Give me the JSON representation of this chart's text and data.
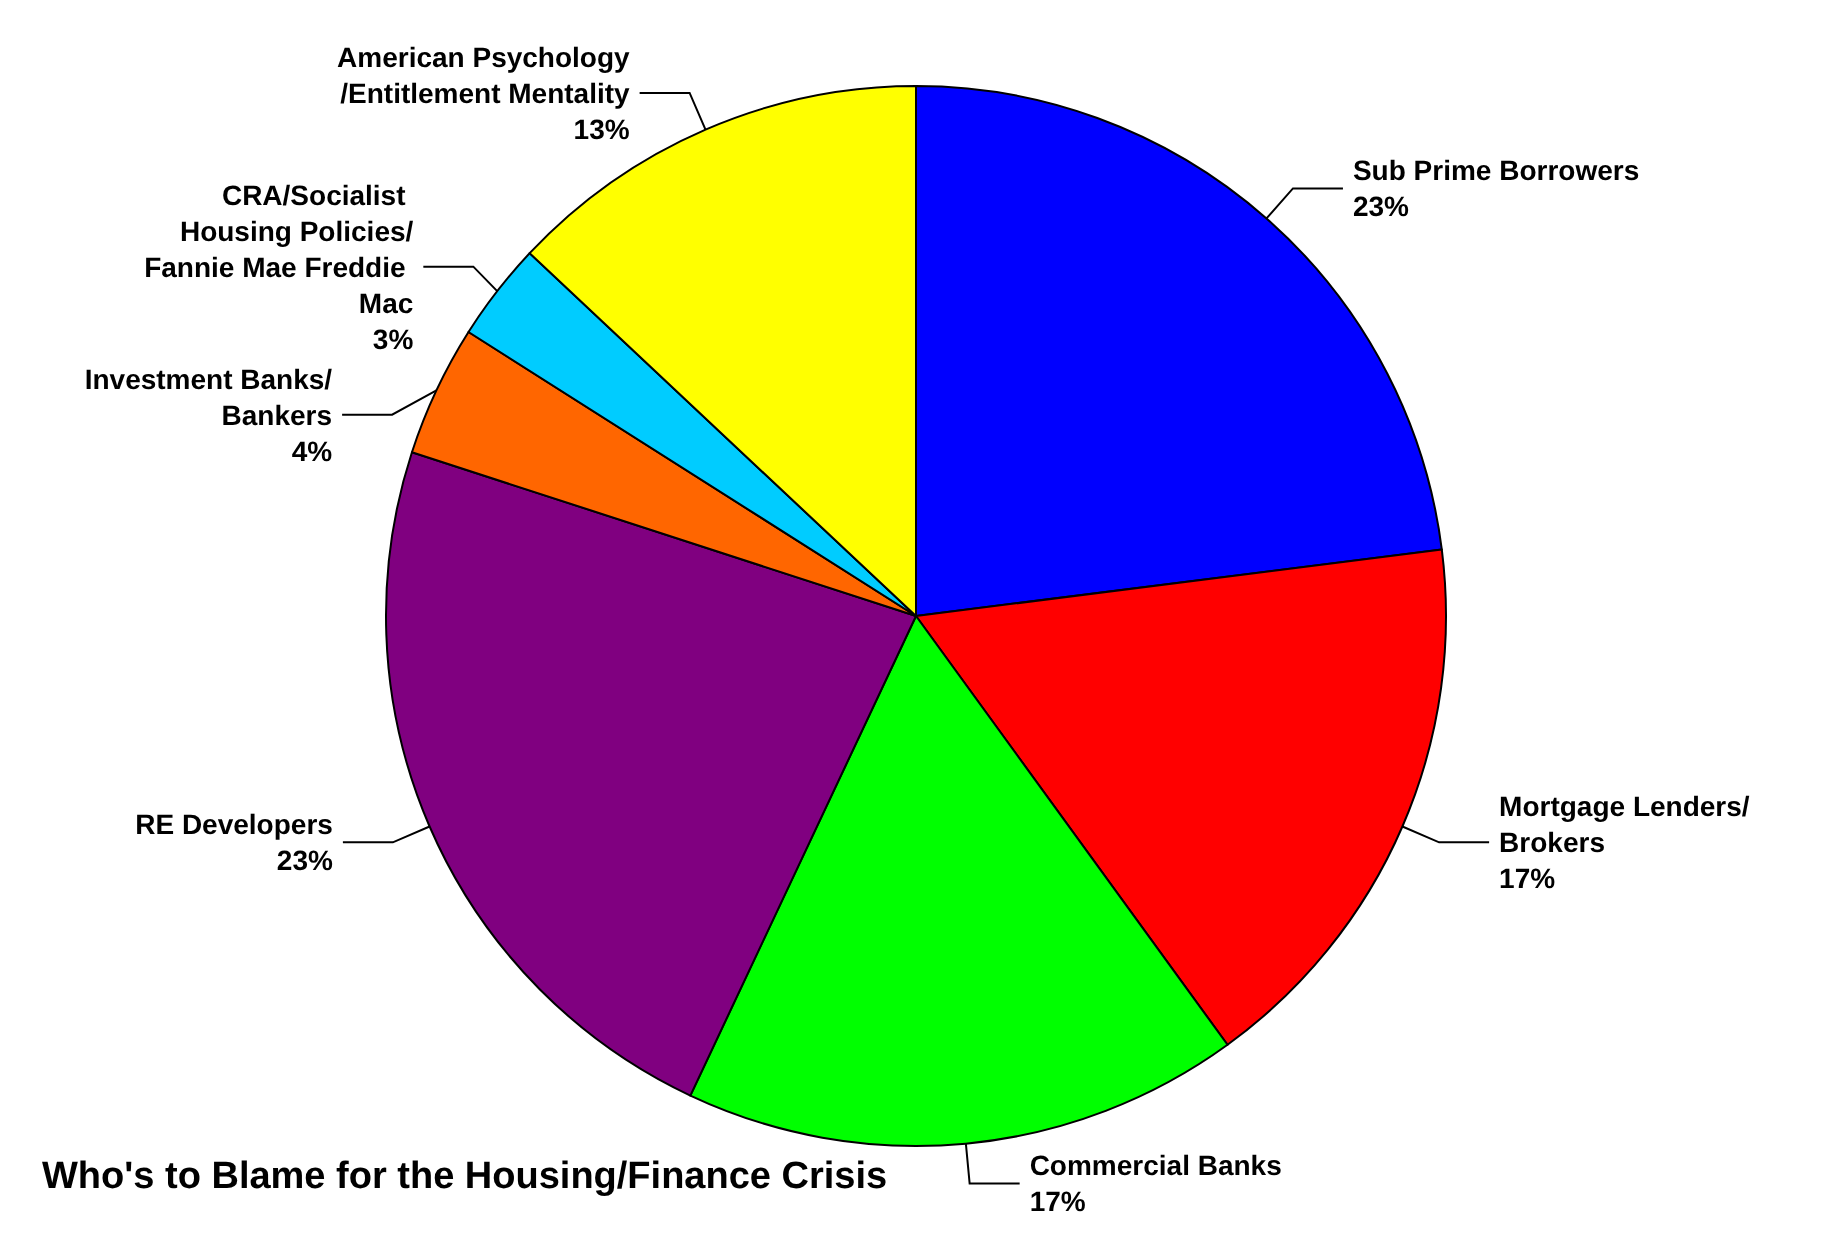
{
  "chart_data": {
    "type": "pie",
    "title": "Who's to Blame for the Housing/Finance Crisis",
    "categories": [
      "Sub Prime Borrowers",
      "Mortgage Lenders/Brokers",
      "Commercial Banks",
      "RE Developers",
      "Investment Banks/Bankers",
      "CRA/Socialist Housing Policies/Fannie Mae Freddie Mac",
      "American Psychology/Entitlement Mentality"
    ],
    "values": [
      23,
      17,
      17,
      23,
      4,
      3,
      13
    ],
    "value_labels": [
      "23%",
      "17%",
      "17%",
      "23%",
      "4%",
      "3%",
      "13%"
    ],
    "colors": [
      "#0000ff",
      "#ff0000",
      "#00ff00",
      "#800080",
      "#ff6600",
      "#00ccff",
      "#ffff00"
    ],
    "legend": false
  }
}
